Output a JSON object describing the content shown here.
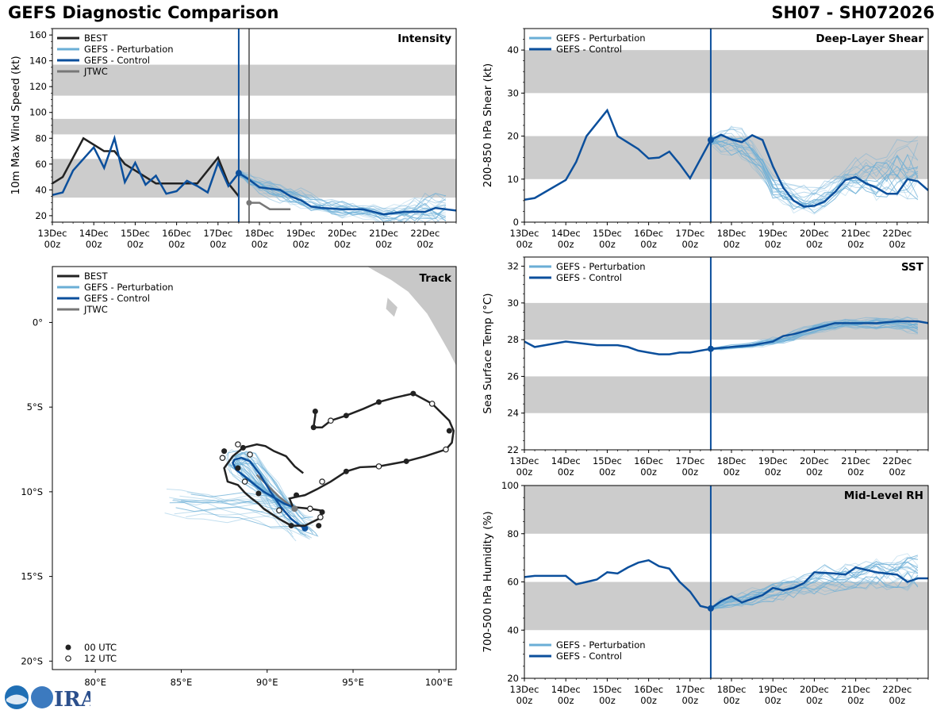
{
  "header": {
    "left_title": "GEFS Diagnostic Comparison",
    "right_title": "SH07 - SH072026"
  },
  "colors": {
    "best": "#222222",
    "perturbation": "#6aaed6",
    "control": "#0b4f9c",
    "jtwc": "#777777",
    "band": "#cccccc",
    "land": "#c8c8c8"
  },
  "time_axis": {
    "tick_days": [
      "13Dec",
      "14Dec",
      "15Dec",
      "16Dec",
      "17Dec",
      "18Dec",
      "19Dec",
      "20Dec",
      "21Dec",
      "22Dec"
    ],
    "tick_hour": "00z",
    "start_day": 0,
    "end_day": 9.75,
    "init_day": 4.5
  },
  "legend": {
    "best": "BEST",
    "perturbation": "GEFS - Perturbation",
    "control": "GEFS - Control",
    "jtwc": "JTWC",
    "utc00": "00 UTC",
    "utc12": "12 UTC"
  },
  "chart_data": [
    {
      "id": "intensity",
      "type": "line",
      "title": "Intensity",
      "ylabel": "10m Max Wind Speed (kt)",
      "ylim": [
        15,
        165
      ],
      "yticks": [
        20,
        40,
        60,
        80,
        100,
        120,
        140,
        160
      ],
      "bands": [
        [
          34,
          64
        ],
        [
          83,
          95
        ],
        [
          113,
          137
        ]
      ],
      "best": {
        "x": [
          0,
          0.25,
          0.75,
          1.25,
          1.5,
          1.75,
          2.0,
          2.5,
          3.0,
          3.5,
          4.0,
          4.25,
          4.5
        ],
        "y": [
          45,
          50,
          80,
          70,
          70,
          60,
          55,
          45,
          45,
          45,
          65,
          45,
          35
        ]
      },
      "control": {
        "x": [
          0,
          0.25,
          0.5,
          1.0,
          1.25,
          1.5,
          1.75,
          2.0,
          2.25,
          2.5,
          2.75,
          3.0,
          3.25,
          3.5,
          3.75,
          4.0,
          4.25,
          4.5,
          4.75,
          5.0,
          5.5,
          5.75,
          6.0,
          6.25,
          6.5,
          7.0,
          7.5,
          7.75,
          8.0,
          8.5,
          8.75,
          9.0,
          9.25,
          9.75
        ],
        "y": [
          36,
          38,
          55,
          73,
          57,
          80,
          46,
          61,
          44,
          51,
          37,
          39,
          47,
          43,
          38,
          61,
          43,
          53,
          48,
          42,
          40,
          35,
          32,
          27,
          26,
          25,
          25,
          23,
          21,
          23,
          23,
          23,
          26,
          24
        ]
      },
      "jtwc": {
        "x": [
          4.75,
          5.0,
          5.25,
          5.75
        ],
        "y": [
          30,
          30,
          25,
          25
        ]
      },
      "init_value": 53,
      "jtwc_marker": {
        "x": 4.75,
        "y": 30
      },
      "perturb": {
        "x0": 4.5,
        "step": 0.25,
        "n": 21,
        "center": [
          53,
          48,
          44,
          41,
          38,
          36,
          33,
          30,
          28,
          26,
          25,
          24,
          23,
          22,
          21,
          21,
          22,
          23,
          24,
          25,
          25
        ],
        "spread": [
          4,
          5,
          6,
          7,
          7,
          7,
          7,
          7,
          6,
          6,
          6,
          5,
          5,
          6,
          7,
          8,
          9,
          10,
          11,
          12,
          13
        ]
      }
    },
    {
      "id": "shear",
      "type": "line",
      "title": "Deep-Layer Shear",
      "ylabel": "200-850 hPa Shear (kt)",
      "ylim": [
        0,
        45
      ],
      "yticks": [
        0,
        10,
        20,
        30,
        40
      ],
      "bands": [
        [
          10,
          20
        ],
        [
          30,
          40
        ]
      ],
      "control": {
        "x": [
          0,
          0.25,
          1.0,
          1.25,
          1.5,
          2.0,
          2.25,
          2.5,
          2.75,
          3.0,
          3.25,
          3.5,
          3.75,
          4.0,
          4.5,
          4.75,
          5.0,
          5.25,
          5.5,
          5.75,
          6.0,
          6.25,
          6.5,
          6.75,
          7.0,
          7.25,
          7.5,
          7.75,
          8.0,
          8.25,
          8.5,
          8.75,
          9.0,
          9.25,
          9.5,
          9.75
        ],
        "y": [
          5.2,
          5.6,
          9.8,
          14,
          20,
          26,
          20,
          18.5,
          17,
          14.8,
          15,
          16.4,
          13.5,
          10.2,
          19.1,
          20.3,
          19.2,
          18.6,
          20.2,
          19.1,
          13,
          8,
          5,
          3.6,
          3.8,
          4.8,
          7,
          9.8,
          10.5,
          9,
          8,
          6.6,
          6.6,
          10,
          9.5,
          7.4
        ]
      },
      "init_value": 19.1,
      "perturb": {
        "x0": 4.5,
        "step": 0.25,
        "n": 21,
        "center": [
          19,
          19,
          19,
          18,
          16,
          13,
          9,
          7,
          5.5,
          5,
          5.5,
          6.5,
          8,
          9.5,
          10.5,
          11,
          11,
          11.5,
          12,
          12,
          12
        ],
        "spread": [
          2,
          3,
          3,
          3,
          3,
          3,
          3,
          3,
          3,
          3,
          3,
          3,
          4,
          4,
          4,
          4,
          5,
          5,
          6,
          6,
          7
        ]
      }
    },
    {
      "id": "sst",
      "type": "line",
      "title": "SST",
      "ylabel": "Sea Surface Temp (°C)",
      "ylim": [
        22,
        32.5
      ],
      "yticks": [
        22,
        24,
        26,
        28,
        30,
        32
      ],
      "bands": [
        [
          24,
          26
        ],
        [
          28,
          30
        ]
      ],
      "control": {
        "x": [
          0,
          0.25,
          1.0,
          1.75,
          2.0,
          2.25,
          2.5,
          2.75,
          3.0,
          3.25,
          3.5,
          3.75,
          4.0,
          4.25,
          4.5,
          5.0,
          5.5,
          6.0,
          6.25,
          6.5,
          7.0,
          7.5,
          8.0,
          8.5,
          9.0,
          9.5,
          9.75
        ],
        "y": [
          27.9,
          27.6,
          27.9,
          27.7,
          27.7,
          27.7,
          27.6,
          27.4,
          27.3,
          27.2,
          27.2,
          27.3,
          27.3,
          27.4,
          27.5,
          27.6,
          27.7,
          27.9,
          28.2,
          28.3,
          28.6,
          28.9,
          28.9,
          28.9,
          29.0,
          29.0,
          28.9
        ]
      },
      "init_value": 27.5,
      "perturb": {
        "x0": 4.5,
        "step": 0.25,
        "n": 21,
        "center": [
          27.5,
          27.55,
          27.6,
          27.65,
          27.7,
          27.8,
          27.9,
          28.0,
          28.2,
          28.4,
          28.6,
          28.7,
          28.8,
          28.85,
          28.85,
          28.9,
          28.9,
          28.9,
          28.85,
          28.8,
          28.7
        ],
        "spread": [
          0.1,
          0.1,
          0.1,
          0.1,
          0.15,
          0.2,
          0.2,
          0.2,
          0.25,
          0.25,
          0.25,
          0.25,
          0.25,
          0.25,
          0.25,
          0.25,
          0.3,
          0.3,
          0.35,
          0.35,
          0.35
        ]
      }
    },
    {
      "id": "rh",
      "type": "line",
      "title": "Mid-Level RH",
      "ylabel": "700-500 hPa Humidity (%)",
      "ylim": [
        20,
        100
      ],
      "yticks": [
        20,
        40,
        60,
        80,
        100
      ],
      "bands": [
        [
          40,
          60
        ],
        [
          80,
          100
        ]
      ],
      "control": {
        "x": [
          0,
          0.25,
          0.5,
          1.0,
          1.25,
          1.5,
          1.75,
          2.0,
          2.25,
          2.5,
          2.75,
          3.0,
          3.25,
          3.5,
          3.75,
          4.0,
          4.25,
          4.5,
          4.75,
          5.0,
          5.25,
          5.5,
          5.75,
          6.0,
          6.25,
          6.5,
          6.75,
          7.0,
          7.5,
          7.75,
          8.0,
          8.25,
          8.5,
          8.75,
          9.0,
          9.25,
          9.5,
          9.75
        ],
        "y": [
          62,
          62.5,
          62.5,
          62.5,
          59,
          60,
          61,
          64,
          63.5,
          66,
          68,
          69,
          66.5,
          65.5,
          60,
          56,
          50,
          49,
          52,
          54,
          51.5,
          53,
          54.5,
          57.5,
          56.5,
          57.5,
          59.5,
          64,
          63.5,
          63,
          66,
          65,
          64,
          63.5,
          63,
          60,
          61.5,
          61.5
        ]
      },
      "init_value": 49,
      "perturb": {
        "x0": 4.5,
        "step": 0.25,
        "n": 21,
        "center": [
          49,
          51,
          52,
          53,
          54,
          55,
          56,
          57,
          58,
          59,
          60,
          61,
          61.5,
          62,
          62.5,
          63,
          63.5,
          64,
          64,
          64.5,
          65
        ],
        "spread": [
          1,
          2,
          2,
          3,
          3,
          3,
          4,
          4,
          4,
          4,
          5,
          5,
          5,
          5,
          5,
          5,
          6,
          6,
          6,
          7,
          7
        ]
      }
    },
    {
      "id": "track",
      "type": "scatter",
      "title": "Track",
      "xlim": [
        77.5,
        101
      ],
      "ylim": [
        -20.5,
        3.3
      ],
      "xticks": [
        80,
        85,
        90,
        95,
        100
      ],
      "xtick_labels": [
        "80°E",
        "85°E",
        "90°E",
        "95°E",
        "100°E"
      ],
      "yticks": [
        0,
        -5,
        -10,
        -15,
        -20
      ],
      "ytick_labels": [
        "0°",
        "5°S",
        "10°S",
        "15°S",
        "20°S"
      ],
      "best": {
        "lon": [
          92.8,
          92.8,
          92.7,
          93.2,
          93.7,
          94.6,
          95.6,
          96.5,
          97.4,
          98.5,
          99.6,
          100.6,
          100.85,
          100.75,
          100.4,
          99.2,
          98.1,
          96.5,
          95.4,
          94.6,
          93.7,
          92.9,
          92.2,
          91.7,
          91.3,
          91.5,
          92.5,
          93.1,
          93.2,
          93.0,
          92.2,
          91.4,
          90.7,
          89.8,
          89.5,
          89.1,
          88.7,
          88.3,
          87.7,
          87.5,
          88.0,
          88.6,
          89.4,
          89.9,
          90.4,
          91.1,
          91.6,
          92.1
        ],
        "lat": [
          -5.25,
          -5.5,
          -6.2,
          -6.2,
          -5.8,
          -5.5,
          -5.1,
          -4.7,
          -4.45,
          -4.2,
          -4.8,
          -5.8,
          -6.4,
          -7.1,
          -7.5,
          -7.9,
          -8.2,
          -8.5,
          -8.55,
          -8.8,
          -9.4,
          -9.85,
          -10.2,
          -10.3,
          -10.4,
          -10.9,
          -11.0,
          -11.1,
          -11.2,
          -11.6,
          -12.0,
          -12.0,
          -11.6,
          -11.0,
          -10.7,
          -10.4,
          -10.05,
          -9.6,
          -9.4,
          -8.6,
          -7.9,
          -7.4,
          -7.2,
          -7.3,
          -7.6,
          -7.9,
          -8.5,
          -8.9
        ],
        "m00": [
          [
            92.8,
            -5.25
          ],
          [
            92.7,
            -6.2
          ],
          [
            94.6,
            -5.5
          ],
          [
            96.5,
            -4.7
          ],
          [
            98.5,
            -4.2
          ],
          [
            100.6,
            -6.4
          ],
          [
            98.1,
            -8.2
          ],
          [
            94.6,
            -8.8
          ],
          [
            91.7,
            -10.2
          ],
          [
            93.2,
            -11.2
          ],
          [
            93.0,
            -12.0
          ],
          [
            91.4,
            -12.0
          ],
          [
            89.5,
            -10.1
          ],
          [
            88.3,
            -8.6
          ],
          [
            87.5,
            -7.6
          ],
          [
            88.6,
            -7.4
          ]
        ],
        "m12": [
          [
            93.7,
            -5.8
          ],
          [
            99.6,
            -4.8
          ],
          [
            100.4,
            -7.5
          ],
          [
            96.5,
            -8.5
          ],
          [
            93.2,
            -9.4
          ],
          [
            92.5,
            -11.0
          ],
          [
            93.1,
            -11.5
          ],
          [
            90.7,
            -11.1
          ],
          [
            88.7,
            -9.4
          ],
          [
            87.4,
            -8.0
          ],
          [
            88.3,
            -7.2
          ],
          [
            89.0,
            -7.8
          ]
        ]
      },
      "control": {
        "lon": [
          91.6,
          91.5,
          91.0,
          90.5,
          89.8,
          89.3,
          88.7,
          88.2,
          88.0,
          88.1,
          88.5,
          89.0,
          89.6,
          90.2,
          90.8,
          91.4,
          91.9,
          92.2
        ],
        "lat": [
          -11.0,
          -10.9,
          -10.7,
          -10.4,
          -10.0,
          -9.6,
          -9.1,
          -8.7,
          -8.3,
          -8.1,
          -8.0,
          -8.2,
          -9.0,
          -10.0,
          -10.9,
          -11.6,
          -12.0,
          -12.15
        ]
      },
      "jtwc": {
        "lon": [
          91.6,
          91.2,
          90.7,
          90.3,
          89.8,
          89.4
        ],
        "lat": [
          -11.0,
          -10.7,
          -10.3,
          -9.9,
          -9.4,
          -9.0
        ]
      },
      "init_point": [
        91.6,
        -11.0
      ],
      "land": [
        [
          [
            95.8,
            3.3
          ],
          [
            96.3,
            3.0
          ],
          [
            97.2,
            2.5
          ],
          [
            98.2,
            1.8
          ],
          [
            99.3,
            0.5
          ],
          [
            100.1,
            -0.9
          ],
          [
            100.6,
            -1.8
          ],
          [
            101.0,
            -2.6
          ],
          [
            101.0,
            3.3
          ]
        ],
        [
          [
            97.0,
            1.5
          ],
          [
            97.6,
            0.9
          ],
          [
            97.4,
            0.3
          ],
          [
            96.9,
            0.8
          ]
        ]
      ]
    }
  ]
}
